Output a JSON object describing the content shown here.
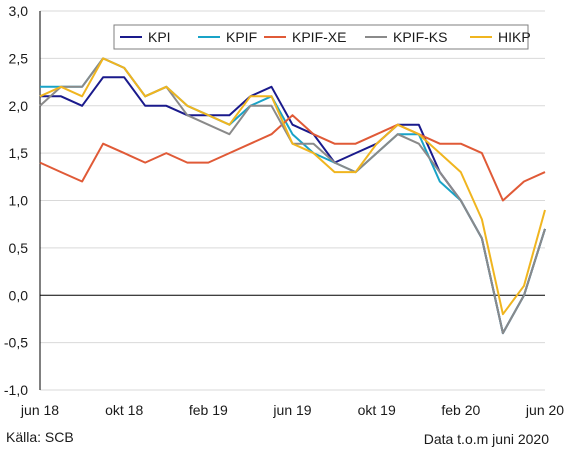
{
  "chart_data": {
    "type": "line",
    "yticks": [
      "3,0",
      "2,5",
      "2,0",
      "1,5",
      "1,0",
      "0,5",
      "0,0",
      "-0,5",
      "-1,0"
    ],
    "ylim": [
      -1.0,
      3.0
    ],
    "xtick_labels": [
      "jun 18",
      "okt 18",
      "feb 19",
      "jun 19",
      "okt 19",
      "feb 20",
      "jun 20"
    ],
    "x": [
      "2018-06",
      "2018-07",
      "2018-08",
      "2018-09",
      "2018-10",
      "2018-11",
      "2018-12",
      "2019-01",
      "2019-02",
      "2019-03",
      "2019-04",
      "2019-05",
      "2019-06",
      "2019-07",
      "2019-08",
      "2019-09",
      "2019-10",
      "2019-11",
      "2019-12",
      "2020-01",
      "2020-02",
      "2020-03",
      "2020-04",
      "2020-05",
      "2020-06"
    ],
    "series": [
      {
        "name": "KPI",
        "color": "#1a1a8c",
        "values": [
          2.1,
          2.1,
          2.0,
          2.3,
          2.3,
          2.0,
          2.0,
          1.9,
          1.9,
          1.9,
          2.1,
          2.2,
          1.8,
          1.7,
          1.4,
          1.5,
          1.6,
          1.8,
          1.8,
          1.3,
          1.0,
          0.6,
          -0.4,
          0.0,
          0.7
        ]
      },
      {
        "name": "KPIF",
        "color": "#19a3c7",
        "values": [
          2.2,
          2.2,
          2.2,
          2.5,
          2.4,
          2.1,
          2.2,
          2.0,
          1.9,
          1.8,
          2.0,
          2.1,
          1.7,
          1.5,
          1.4,
          1.3,
          1.5,
          1.7,
          1.7,
          1.2,
          1.0,
          0.6,
          -0.4,
          0.0,
          0.7
        ]
      },
      {
        "name": "KPIF-XE",
        "color": "#e05a37",
        "values": [
          1.4,
          1.3,
          1.2,
          1.6,
          1.5,
          1.4,
          1.5,
          1.4,
          1.4,
          1.5,
          1.6,
          1.7,
          1.9,
          1.7,
          1.6,
          1.6,
          1.7,
          1.8,
          1.7,
          1.6,
          1.6,
          1.5,
          1.0,
          1.2,
          1.3
        ]
      },
      {
        "name": "KPIF-KS",
        "color": "#8a8a8a",
        "values": [
          2.0,
          2.2,
          2.2,
          2.5,
          2.4,
          2.1,
          2.2,
          1.9,
          1.8,
          1.7,
          2.0,
          2.0,
          1.6,
          1.6,
          1.4,
          1.3,
          1.5,
          1.7,
          1.6,
          1.3,
          1.0,
          0.6,
          -0.4,
          0.0,
          0.7
        ]
      },
      {
        "name": "HIKP",
        "color": "#f0b51f",
        "values": [
          2.1,
          2.2,
          2.1,
          2.5,
          2.4,
          2.1,
          2.2,
          2.0,
          1.9,
          1.8,
          2.1,
          2.1,
          1.6,
          1.5,
          1.3,
          1.3,
          1.6,
          1.8,
          1.7,
          1.5,
          1.3,
          0.8,
          -0.2,
          0.1,
          0.9
        ]
      }
    ],
    "grid": "horizontal",
    "legend": "top-right"
  },
  "footer": {
    "source": "Källa: SCB",
    "date_note": "Data t.o.m juni 2020"
  }
}
